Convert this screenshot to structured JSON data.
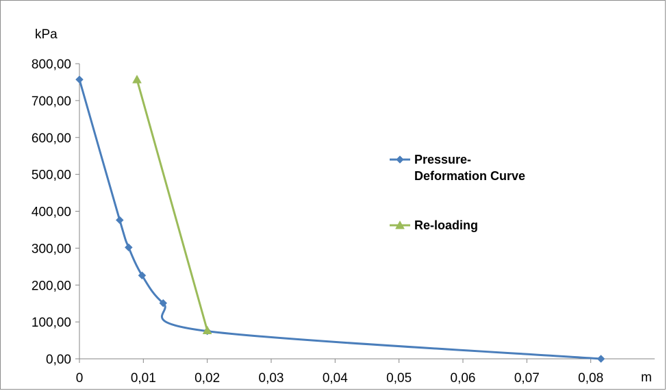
{
  "chart_data": {
    "type": "line",
    "title": "",
    "xlabel": "m",
    "ylabel": "kPa",
    "xlim": [
      0,
      0.09
    ],
    "ylim": [
      0,
      800
    ],
    "x_ticks": [
      0,
      0.01,
      0.02,
      0.03,
      0.04,
      0.05,
      0.06,
      0.07,
      0.08
    ],
    "x_tick_labels": [
      "0",
      "0,01",
      "0,02",
      "0,03",
      "0,04",
      "0,05",
      "0,06",
      "0,07",
      "0,08"
    ],
    "y_ticks": [
      0,
      100,
      200,
      300,
      400,
      500,
      600,
      700,
      800
    ],
    "y_tick_labels": [
      "0,00",
      "100,00",
      "200,00",
      "300,00",
      "400,00",
      "500,00",
      "600,00",
      "700,00",
      "800,00"
    ],
    "grid": false,
    "legend_position": "right",
    "series": [
      {
        "name": "Pressure-Deformation Curve",
        "name_lines": [
          "Pressure-",
          "Deformation Curve"
        ],
        "color": "#4a7ebb",
        "marker": "diamond",
        "smooth": true,
        "points": [
          {
            "x": 0.0,
            "y": 757
          },
          {
            "x": 0.0063,
            "y": 376
          },
          {
            "x": 0.0077,
            "y": 302
          },
          {
            "x": 0.0098,
            "y": 226
          },
          {
            "x": 0.0131,
            "y": 151
          },
          {
            "x": 0.02,
            "y": 75
          },
          {
            "x": 0.0816,
            "y": 0
          }
        ]
      },
      {
        "name": "Re-loading",
        "name_lines": [
          "Re-loading"
        ],
        "color": "#9bbb59",
        "marker": "triangle",
        "smooth": false,
        "points": [
          {
            "x": 0.009,
            "y": 757
          },
          {
            "x": 0.02,
            "y": 77
          }
        ]
      }
    ]
  }
}
